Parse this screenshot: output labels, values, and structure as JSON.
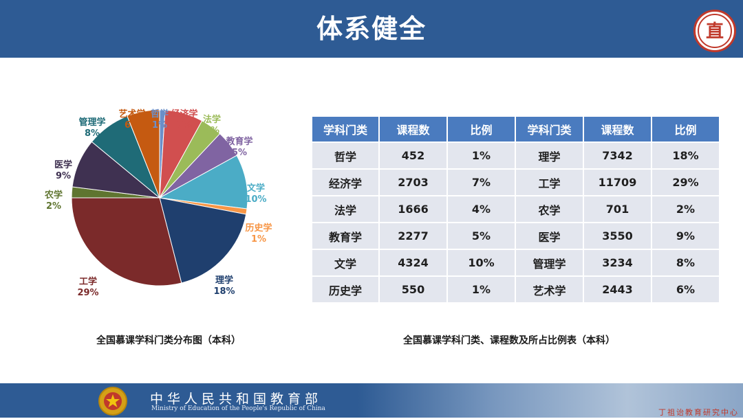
{
  "header": {
    "title": "体系健全"
  },
  "captions": {
    "pie": "全国慕课学科门类分布图（本科）",
    "table": "全国慕课学科门类、课程数及所占比例表（本科）"
  },
  "table": {
    "headers": [
      "学科门类",
      "课程数",
      "比例",
      "学科门类",
      "课程数",
      "比例"
    ],
    "rows": [
      [
        "哲学",
        "452",
        "1%",
        "理学",
        "7342",
        "18%"
      ],
      [
        "经济学",
        "2703",
        "7%",
        "工学",
        "11709",
        "29%"
      ],
      [
        "法学",
        "1666",
        "4%",
        "农学",
        "701",
        "2%"
      ],
      [
        "教育学",
        "2277",
        "5%",
        "医学",
        "3550",
        "9%"
      ],
      [
        "文学",
        "4324",
        "10%",
        "管理学",
        "3234",
        "8%"
      ],
      [
        "历史学",
        "550",
        "1%",
        "艺术学",
        "2443",
        "6%"
      ]
    ]
  },
  "chart_data": {
    "type": "pie",
    "title": "全国慕课学科门类分布图（本科）",
    "slices": [
      {
        "label": "哲学",
        "value": 1,
        "percent": "1%",
        "color": "#6b8fc9"
      },
      {
        "label": "经济学",
        "value": 7,
        "percent": "7%",
        "color": "#d14f4f"
      },
      {
        "label": "法学",
        "value": 4,
        "percent": "4%",
        "color": "#9bbb59"
      },
      {
        "label": "教育学",
        "value": 5,
        "percent": "5%",
        "color": "#8064a2"
      },
      {
        "label": "文学",
        "value": 10,
        "percent": "10%",
        "color": "#4bacc6"
      },
      {
        "label": "历史学",
        "value": 1,
        "percent": "1%",
        "color": "#f79646"
      },
      {
        "label": "理学",
        "value": 18,
        "percent": "18%",
        "color": "#1f3f6e"
      },
      {
        "label": "工学",
        "value": 29,
        "percent": "29%",
        "color": "#7b2a2a"
      },
      {
        "label": "农学",
        "value": 2,
        "percent": "2%",
        "color": "#5f7530"
      },
      {
        "label": "医学",
        "value": 9,
        "percent": "9%",
        "color": "#3f3151"
      },
      {
        "label": "管理学",
        "value": 8,
        "percent": "8%",
        "color": "#1f6b77"
      },
      {
        "label": "艺术学",
        "value": 6,
        "percent": "6%",
        "color": "#c55a11"
      }
    ]
  },
  "footer": {
    "ministry_cn": "中华人民共和国教育部",
    "ministry_en": "Ministry of Education of the People's Republic of China",
    "watermark": "丁祖诒教育研究中心"
  }
}
